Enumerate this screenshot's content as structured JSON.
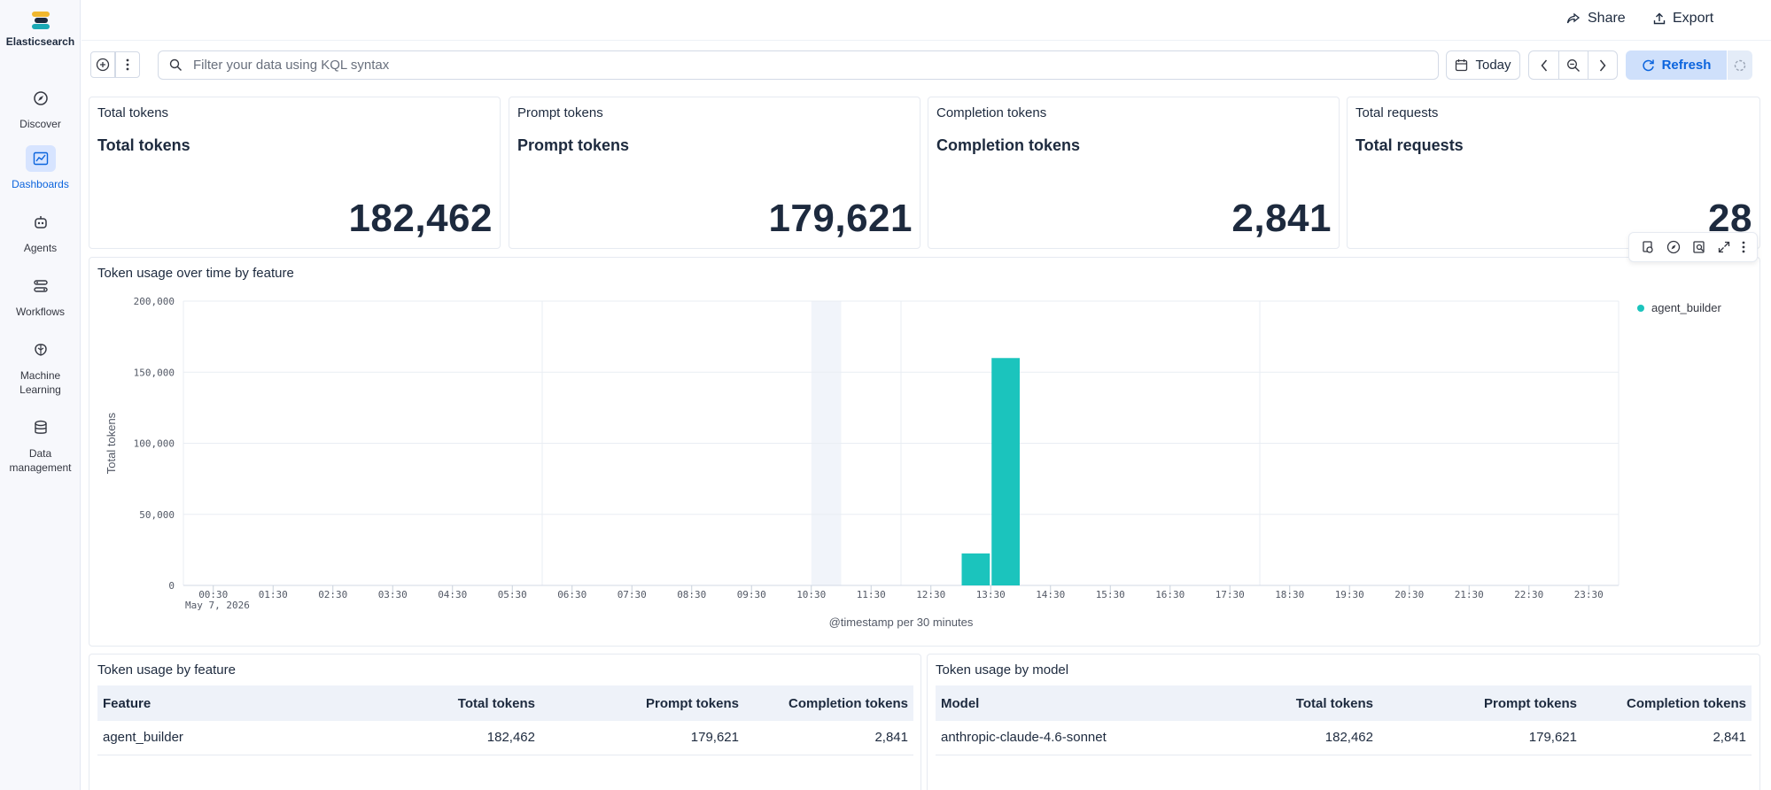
{
  "app": {
    "name": "Elasticsearch"
  },
  "sidebar": {
    "items": [
      {
        "label": "Discover",
        "icon": "compass-icon"
      },
      {
        "label": "Dashboards",
        "icon": "dashboard-icon",
        "active": true
      },
      {
        "label": "Agents",
        "icon": "robot-icon"
      },
      {
        "label": "Workflows",
        "icon": "workflow-icon"
      },
      {
        "label": "Machine Learning",
        "icon": "brain-icon"
      },
      {
        "label": "Data management",
        "icon": "database-icon"
      }
    ]
  },
  "topbar": {
    "share_label": "Share",
    "export_label": "Export"
  },
  "query": {
    "placeholder": "Filter your data using KQL syntax",
    "date_label": "Today",
    "refresh_label": "Refresh"
  },
  "metrics": [
    {
      "title": "Total tokens",
      "subtitle": "Total tokens",
      "value": "182,462"
    },
    {
      "title": "Prompt tokens",
      "subtitle": "Prompt tokens",
      "value": "179,621"
    },
    {
      "title": "Completion tokens",
      "subtitle": "Completion tokens",
      "value": "2,841"
    },
    {
      "title": "Total requests",
      "subtitle": "Total requests",
      "value": "28"
    }
  ],
  "chart_panel": {
    "title": "Token usage over time by feature"
  },
  "chart_data": {
    "type": "bar",
    "title": "Token usage over time by feature",
    "xlabel": "@timestamp per 30 minutes",
    "ylabel": "Total tokens",
    "date_label": "May 7, 2026",
    "categories": [
      "00:30",
      "01:30",
      "02:30",
      "03:30",
      "04:30",
      "05:30",
      "06:30",
      "07:30",
      "08:30",
      "09:30",
      "10:30",
      "11:30",
      "12:30",
      "13:30",
      "14:30",
      "15:30",
      "16:30",
      "17:30",
      "18:30",
      "19:30",
      "20:30",
      "21:30",
      "22:30",
      "23:30"
    ],
    "y_ticks": [
      "0",
      "50,000",
      "100,000",
      "150,000",
      "200,000"
    ],
    "ylim": [
      0,
      200000
    ],
    "xlim_hours": [
      0,
      24
    ],
    "highlight_hour": 10.5,
    "series": [
      {
        "name": "agent_builder",
        "color": "#1bc4bd",
        "bars": [
          {
            "start_hour": 13.0,
            "value": 22500
          },
          {
            "start_hour": 13.5,
            "value": 159962
          }
        ]
      }
    ],
    "legend_position": "top-right",
    "grid": true
  },
  "feature_table": {
    "title": "Token usage by feature",
    "columns": [
      "Feature",
      "Total tokens",
      "Prompt tokens",
      "Completion tokens"
    ],
    "rows": [
      [
        "agent_builder",
        "182,462",
        "179,621",
        "2,841"
      ]
    ]
  },
  "model_table": {
    "title": "Token usage by model",
    "columns": [
      "Model",
      "Total tokens",
      "Prompt tokens",
      "Completion tokens"
    ],
    "rows": [
      [
        "anthropic-claude-4.6-sonnet",
        "182,462",
        "179,621",
        "2,841"
      ]
    ]
  }
}
